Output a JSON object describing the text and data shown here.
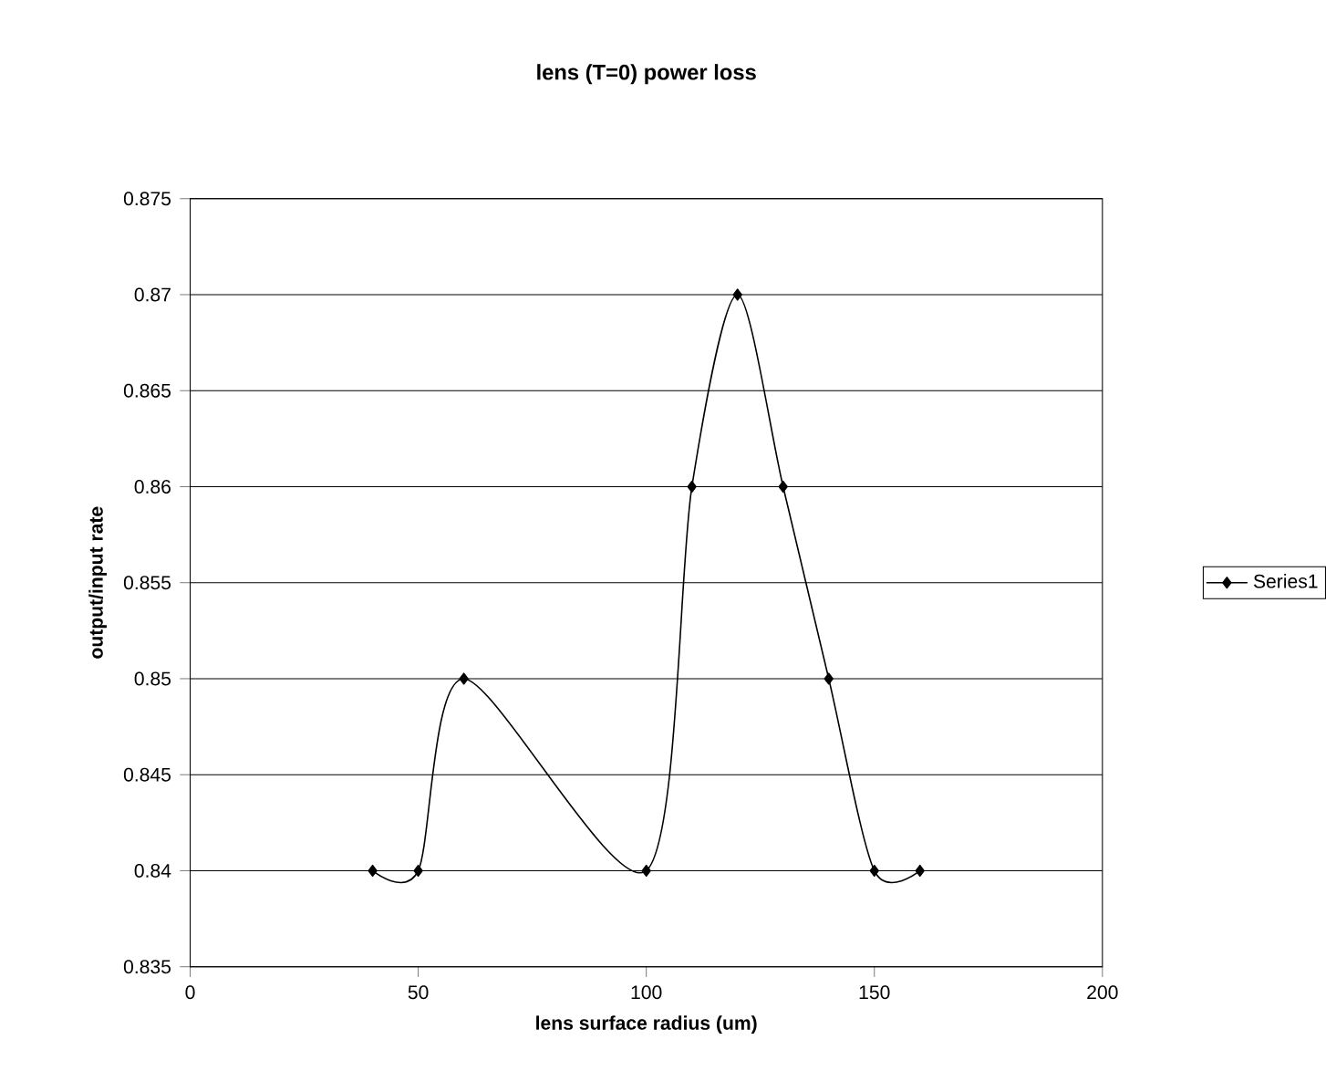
{
  "chart_data": {
    "type": "line",
    "title": "lens (T=0) power loss",
    "xlabel": "lens surface radius (um)",
    "ylabel": "output/input rate",
    "x": [
      40,
      50,
      60,
      100,
      110,
      120,
      130,
      140,
      150,
      160
    ],
    "series": [
      {
        "name": "Series1",
        "color": "#000000",
        "values": [
          0.84,
          0.84,
          0.85,
          0.84,
          0.86,
          0.87,
          0.86,
          0.85,
          0.84,
          0.84
        ]
      }
    ],
    "xlim": [
      0,
      200
    ],
    "xticks": [
      0,
      50,
      100,
      150,
      200
    ],
    "ylim": [
      0.835,
      0.875
    ],
    "yticks": [
      0.835,
      0.84,
      0.845,
      0.85,
      0.855,
      0.86,
      0.865,
      0.87,
      0.875
    ],
    "grid": "y",
    "legend": "right",
    "marker": "diamond",
    "line_style": "solid"
  }
}
